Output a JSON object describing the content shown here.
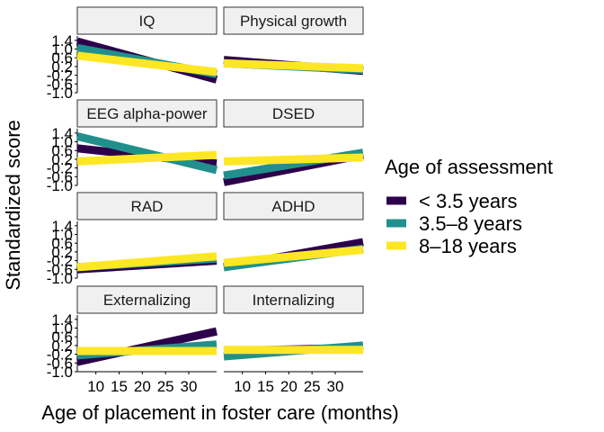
{
  "chart_data": {
    "type": "line",
    "xlabel": "Age of placement in foster care (months)",
    "ylabel": "Standardized score",
    "xlim": [
      6,
      36
    ],
    "ylim": [
      -1.0,
      1.6
    ],
    "x_ticks": [
      10,
      15,
      20,
      25,
      30
    ],
    "x_tick_labels": [
      "10",
      "15",
      "20",
      "25",
      "30"
    ],
    "y_ticks": [
      -1.0,
      -0.6,
      -0.2,
      0.2,
      0.6,
      1.0,
      1.4
    ],
    "y_tick_labels": [
      "-1.0",
      "-0.6",
      "-0.2",
      "0.2",
      "0.6",
      "1.0",
      "1.4"
    ],
    "legend": {
      "title": "Age of assessment",
      "placement": "right",
      "entries": [
        {
          "label": "< 3.5 years",
          "color": "#2d004b"
        },
        {
          "label": "3.5–8 years",
          "color": "#21908d"
        },
        {
          "label": "8–18 years",
          "color": "#fde725"
        }
      ]
    },
    "panels": [
      {
        "title": "IQ",
        "series": [
          {
            "group": "< 3.5 years",
            "x": [
              6,
              36
            ],
            "y": [
              1.35,
              -0.4
            ]
          },
          {
            "group": "3.5–8 years",
            "x": [
              6,
              36
            ],
            "y": [
              1.05,
              -0.15
            ]
          },
          {
            "group": "8–18 years",
            "x": [
              6,
              36
            ],
            "y": [
              0.7,
              -0.05
            ]
          }
        ]
      },
      {
        "title": "Physical growth",
        "series": [
          {
            "group": "< 3.5 years",
            "x": [
              6,
              36
            ],
            "y": [
              0.5,
              0.0
            ]
          },
          {
            "group": "3.5–8 years",
            "x": [
              6,
              36
            ],
            "y": [
              0.35,
              0.05
            ]
          },
          {
            "group": "8–18 years",
            "x": [
              6,
              36
            ],
            "y": [
              0.35,
              0.12
            ]
          }
        ]
      },
      {
        "title": "EEG alpha-power",
        "series": [
          {
            "group": "< 3.5 years",
            "x": [
              6,
              36
            ],
            "y": [
              0.7,
              0.0
            ]
          },
          {
            "group": "3.5–8 years",
            "x": [
              6,
              36
            ],
            "y": [
              1.25,
              -0.3
            ]
          },
          {
            "group": "8–18 years",
            "x": [
              6,
              36
            ],
            "y": [
              0.1,
              0.4
            ]
          }
        ]
      },
      {
        "title": "DSED",
        "series": [
          {
            "group": "< 3.5 years",
            "x": [
              6,
              36
            ],
            "y": [
              -0.85,
              0.4
            ]
          },
          {
            "group": "3.5–8 years",
            "x": [
              6,
              36
            ],
            "y": [
              -0.55,
              0.5
            ]
          },
          {
            "group": "8–18 years",
            "x": [
              6,
              36
            ],
            "y": [
              0.1,
              0.28
            ]
          }
        ]
      },
      {
        "title": "RAD",
        "series": [
          {
            "group": "< 3.5 years",
            "x": [
              6,
              36
            ],
            "y": [
              -0.6,
              -0.2
            ]
          },
          {
            "group": "3.5–8 years",
            "x": [
              6,
              36
            ],
            "y": [
              -0.5,
              -0.1
            ]
          },
          {
            "group": "8–18 years",
            "x": [
              6,
              36
            ],
            "y": [
              -0.5,
              0.0
            ]
          }
        ]
      },
      {
        "title": "ADHD",
        "series": [
          {
            "group": "< 3.5 years",
            "x": [
              6,
              36
            ],
            "y": [
              -0.5,
              0.65
            ]
          },
          {
            "group": "3.5–8 years",
            "x": [
              6,
              36
            ],
            "y": [
              -0.5,
              0.35
            ]
          },
          {
            "group": "8–18 years",
            "x": [
              6,
              36
            ],
            "y": [
              -0.3,
              0.3
            ]
          }
        ]
      },
      {
        "title": "Externalizing",
        "series": [
          {
            "group": "< 3.5 years",
            "x": [
              6,
              36
            ],
            "y": [
              -0.55,
              0.85
            ]
          },
          {
            "group": "3.5–8 years",
            "x": [
              6,
              36
            ],
            "y": [
              -0.25,
              0.25
            ]
          },
          {
            "group": "8–18 years",
            "x": [
              6,
              36
            ],
            "y": [
              -0.05,
              -0.05
            ]
          }
        ]
      },
      {
        "title": "Internalizing",
        "series": [
          {
            "group": "< 3.5 years",
            "x": [
              6,
              36
            ],
            "y": [
              -0.05,
              0.1
            ]
          },
          {
            "group": "3.5–8 years",
            "x": [
              6,
              36
            ],
            "y": [
              -0.3,
              0.2
            ]
          },
          {
            "group": "8–18 years",
            "x": [
              6,
              36
            ],
            "y": [
              0.0,
              0.0
            ]
          }
        ]
      }
    ]
  }
}
